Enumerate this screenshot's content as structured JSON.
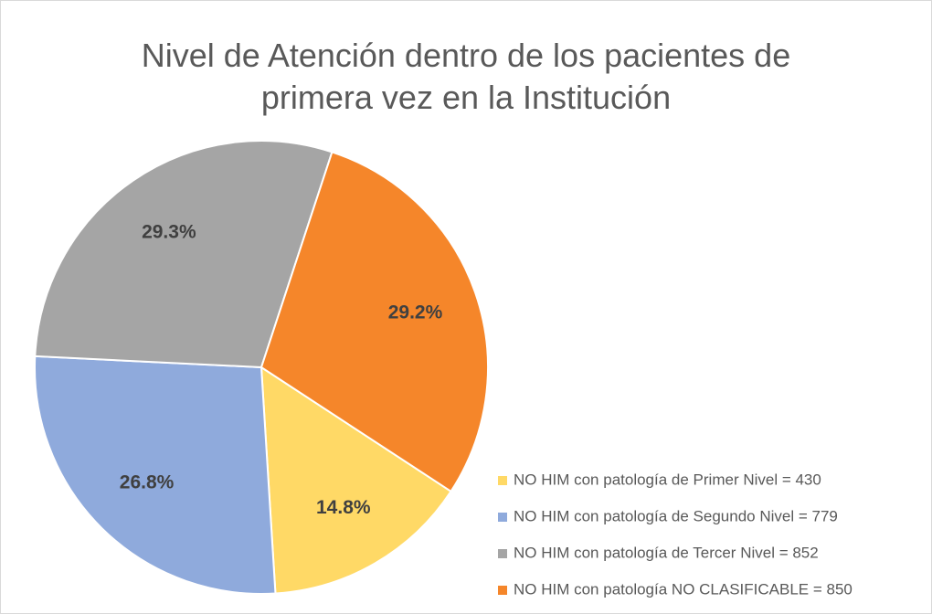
{
  "chart_data": {
    "type": "pie",
    "title": "Nivel de Atención dentro de los pacientes de primera vez en la Institución",
    "categories": [
      "NO HIM con patología de Primer Nivel = 430",
      "NO HIM con patología de Segundo Nivel = 779",
      "NO HIM con patología de Tercer Nivel = 852",
      "NO HIM con patología NO CLASIFICABLE = 850"
    ],
    "values": [
      14.8,
      26.8,
      29.3,
      29.2
    ],
    "value_labels": [
      "14.8%",
      "26.8%",
      "29.3%",
      "29.2%"
    ],
    "colors": [
      "#FFD966",
      "#8FAADC",
      "#A5A5A5",
      "#F5862A"
    ],
    "legend": "right"
  }
}
